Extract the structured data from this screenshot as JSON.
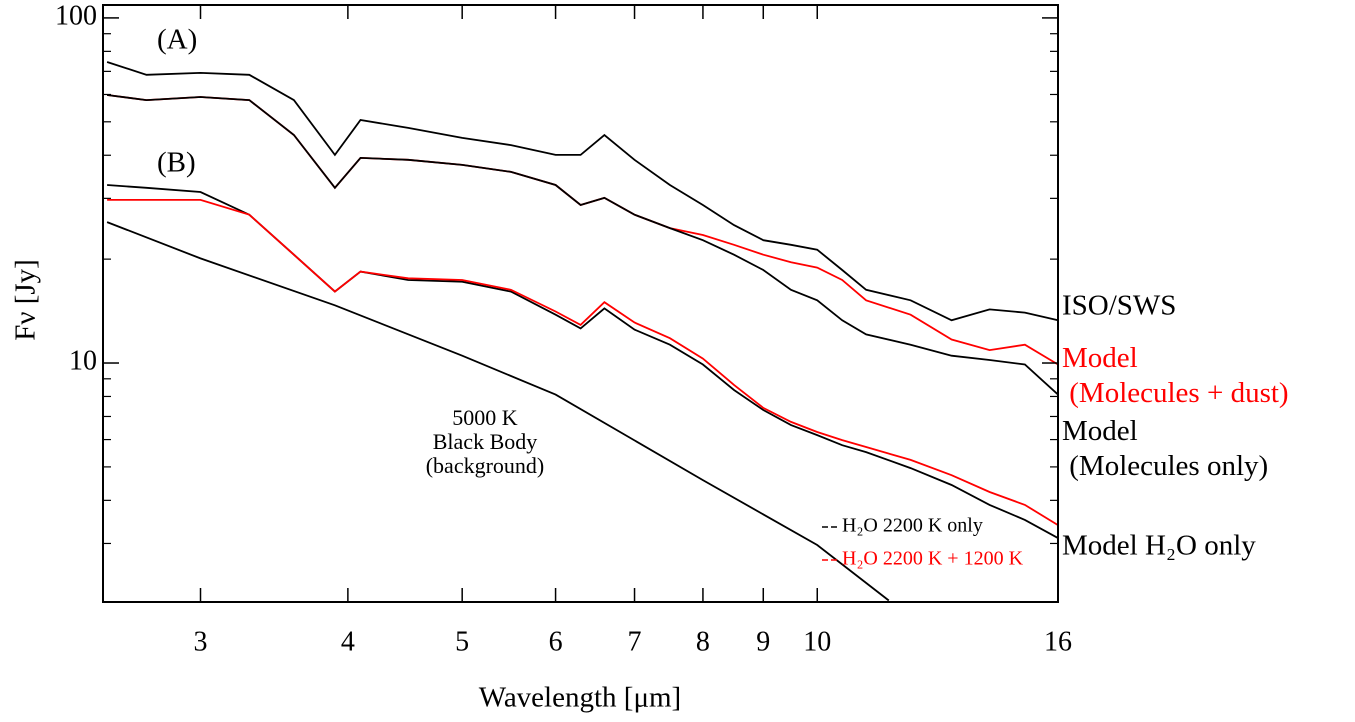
{
  "chart_data": {
    "type": "line",
    "xlabel": "Wavelength [μm]",
    "ylabel": "Fν [Jy]",
    "xscale": "log",
    "yscale": "log",
    "xlim": [
      2.48,
      16
    ],
    "ylim": [
      2.03,
      109
    ],
    "xticks": [
      3,
      4,
      5,
      6,
      7,
      8,
      9,
      10,
      16
    ],
    "yticks": [
      10,
      100
    ],
    "yminorticks": [
      3,
      4,
      5,
      6,
      7,
      8,
      9,
      20,
      30,
      40,
      50,
      60,
      70,
      80,
      90
    ],
    "annotations": [
      "(A)",
      "(B)",
      "Model H₂O only"
    ],
    "series": [
      {
        "name": "ISO/SWS",
        "color": "#000000",
        "x": [
          2.5,
          2.7,
          3.0,
          3.3,
          3.6,
          3.9,
          4.1,
          4.5,
          5,
          5.5,
          6,
          6.3,
          6.6,
          7,
          7.5,
          8,
          8.5,
          9,
          9.5,
          10,
          10.5,
          11,
          12,
          13,
          14,
          15,
          16
        ],
        "values": [
          74.5,
          68.4,
          69.3,
          68.4,
          57.8,
          40.1,
          50.6,
          48.0,
          44.9,
          42.8,
          40.1,
          40.1,
          45.8,
          38.8,
          32.8,
          28.7,
          25.1,
          22.7,
          22.0,
          21.3,
          18.6,
          16.3,
          15.2,
          13.3,
          14.3,
          14.0,
          13.3
        ]
      },
      {
        "name": "Model\n (Molecules + dust)",
        "color": "#ff0000",
        "x": [
          2.5,
          2.7,
          3.0,
          3.3,
          3.6,
          3.9,
          4.1,
          4.5,
          5,
          5.5,
          6,
          6.3,
          6.6,
          7,
          7.5,
          8,
          8.5,
          9,
          9.5,
          10,
          10.5,
          11,
          12,
          13,
          14,
          15,
          16
        ],
        "values": [
          59.8,
          57.8,
          59.0,
          57.8,
          45.8,
          32.2,
          39.3,
          38.8,
          37.5,
          35.8,
          32.8,
          28.7,
          30.1,
          26.9,
          24.6,
          23.5,
          22.0,
          20.6,
          19.6,
          18.9,
          17.4,
          15.2,
          13.8,
          11.7,
          10.9,
          11.3,
          9.9
        ]
      },
      {
        "name": "Model\n (Molecules only)",
        "color": "#000000",
        "x": [
          2.5,
          2.7,
          3.0,
          3.3,
          3.6,
          3.9,
          4.1,
          4.5,
          5,
          5.5,
          6,
          6.3,
          6.6,
          7,
          7.5,
          8,
          8.5,
          9,
          9.5,
          10,
          10.5,
          11,
          12,
          13,
          14,
          15,
          16
        ],
        "values": [
          59.8,
          57.8,
          59.0,
          57.8,
          45.8,
          32.2,
          39.3,
          38.8,
          37.5,
          35.8,
          32.8,
          28.7,
          30.1,
          26.9,
          24.6,
          22.7,
          20.6,
          18.6,
          16.3,
          15.2,
          13.3,
          12.1,
          11.3,
          10.5,
          10.2,
          9.9,
          8.1
        ]
      },
      {
        "name": "H₂O 2200 K only",
        "color": "#000000",
        "x": [
          2.5,
          2.7,
          3.0,
          3.3,
          3.6,
          3.9,
          4.1,
          4.5,
          5,
          5.5,
          6,
          6.3,
          6.6,
          7,
          7.5,
          8,
          8.5,
          9,
          9.5,
          10,
          10.5,
          11,
          12,
          13,
          14,
          15,
          16
        ],
        "values": [
          32.8,
          32.2,
          31.3,
          26.9,
          20.6,
          16.1,
          18.4,
          17.4,
          17.2,
          16.1,
          13.8,
          12.6,
          14.4,
          12.5,
          11.3,
          9.9,
          8.35,
          7.31,
          6.61,
          6.18,
          5.78,
          5.52,
          4.96,
          4.43,
          3.88,
          3.51,
          3.11
        ]
      },
      {
        "name": "H₂O 2200 K + 1200 K",
        "color": "#ff0000",
        "x": [
          2.5,
          2.7,
          3.0,
          3.3,
          3.6,
          3.9,
          4.1,
          4.5,
          5,
          5.5,
          6,
          6.3,
          6.6,
          7,
          7.5,
          8,
          8.5,
          9,
          9.5,
          10,
          10.5,
          11,
          12,
          13,
          14,
          15,
          16
        ],
        "values": [
          29.7,
          29.7,
          29.7,
          26.9,
          20.6,
          16.1,
          18.4,
          17.6,
          17.4,
          16.3,
          14.1,
          12.9,
          15.0,
          13.1,
          11.8,
          10.3,
          8.64,
          7.41,
          6.75,
          6.31,
          5.98,
          5.71,
          5.24,
          4.73,
          4.23,
          3.88,
          3.39
        ]
      },
      {
        "name": "5000 K\nBlack Body\n(background)",
        "color": "#000000",
        "x": [
          2.5,
          3,
          3.9,
          5,
          6,
          8,
          10,
          11.5
        ],
        "values": [
          25.6,
          20.1,
          14.7,
          10.5,
          8.1,
          4.58,
          2.97,
          2.05
        ]
      }
    ]
  }
}
